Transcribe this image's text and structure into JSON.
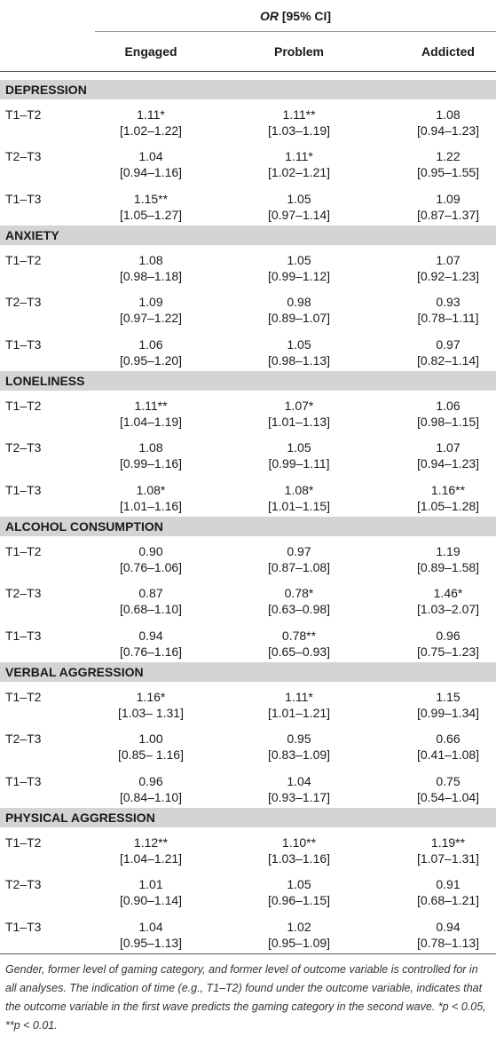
{
  "header": {
    "title_italic": "OR",
    "title_rest": "[95% CI]",
    "columns": [
      "Engaged",
      "Problem",
      "Addicted"
    ]
  },
  "sections": [
    {
      "name": "DEPRESSION",
      "rows": [
        {
          "time": "T1–T2",
          "cells": [
            {
              "value": "1.11*",
              "ci": "[1.02–1.22]"
            },
            {
              "value": "1.11**",
              "ci": "[1.03–1.19]"
            },
            {
              "value": "1.08",
              "ci": "[0.94–1.23]"
            }
          ]
        },
        {
          "time": "T2–T3",
          "cells": [
            {
              "value": "1.04",
              "ci": "[0.94–1.16]"
            },
            {
              "value": "1.11*",
              "ci": "[1.02–1.21]"
            },
            {
              "value": "1.22",
              "ci": "[0.95–1.55]"
            }
          ]
        },
        {
          "time": "T1–T3",
          "cells": [
            {
              "value": "1.15**",
              "ci": "[1.05–1.27]"
            },
            {
              "value": "1.05",
              "ci": "[0.97–1.14]"
            },
            {
              "value": "1.09",
              "ci": "[0.87–1.37]"
            }
          ]
        }
      ]
    },
    {
      "name": "ANXIETY",
      "rows": [
        {
          "time": "T1–T2",
          "cells": [
            {
              "value": "1.08",
              "ci": "[0.98–1.18]"
            },
            {
              "value": "1.05",
              "ci": "[0.99–1.12]"
            },
            {
              "value": "1.07",
              "ci": "[0.92–1.23]"
            }
          ]
        },
        {
          "time": "T2–T3",
          "cells": [
            {
              "value": "1.09",
              "ci": "[0.97–1.22]"
            },
            {
              "value": "0.98",
              "ci": "[0.89–1.07]"
            },
            {
              "value": "0.93",
              "ci": "[0.78–1.11]"
            }
          ]
        },
        {
          "time": "T1–T3",
          "cells": [
            {
              "value": "1.06",
              "ci": "[0.95–1.20]"
            },
            {
              "value": "1.05",
              "ci": "[0.98–1.13]"
            },
            {
              "value": "0.97",
              "ci": "[0.82–1.14]"
            }
          ]
        }
      ]
    },
    {
      "name": "LONELINESS",
      "rows": [
        {
          "time": "T1–T2",
          "cells": [
            {
              "value": "1.11**",
              "ci": "[1.04–1.19]"
            },
            {
              "value": "1.07*",
              "ci": "[1.01–1.13]"
            },
            {
              "value": "1.06",
              "ci": "[0.98–1.15]"
            }
          ]
        },
        {
          "time": "T2–T3",
          "cells": [
            {
              "value": "1.08",
              "ci": "[0.99–1.16]"
            },
            {
              "value": "1.05",
              "ci": "[0.99–1.11]"
            },
            {
              "value": "1.07",
              "ci": "[0.94–1.23]"
            }
          ]
        },
        {
          "time": "T1–T3",
          "cells": [
            {
              "value": "1.08*",
              "ci": "[1.01–1.16]"
            },
            {
              "value": "1.08*",
              "ci": "[1.01–1.15]"
            },
            {
              "value": "1.16**",
              "ci": "[1.05–1.28]"
            }
          ]
        }
      ]
    },
    {
      "name": "ALCOHOL CONSUMPTION",
      "rows": [
        {
          "time": "T1–T2",
          "cells": [
            {
              "value": "0.90",
              "ci": "[0.76–1.06]"
            },
            {
              "value": "0.97",
              "ci": "[0.87–1.08]"
            },
            {
              "value": "1.19",
              "ci": "[0.89–1.58]"
            }
          ]
        },
        {
          "time": "T2–T3",
          "cells": [
            {
              "value": "0.87",
              "ci": "[0.68–1.10]"
            },
            {
              "value": "0.78*",
              "ci": "[0.63–0.98]"
            },
            {
              "value": "1.46*",
              "ci": "[1.03–2.07]"
            }
          ]
        },
        {
          "time": "T1–T3",
          "cells": [
            {
              "value": "0.94",
              "ci": "[0.76–1.16]"
            },
            {
              "value": "0.78**",
              "ci": "[0.65–0.93]"
            },
            {
              "value": "0.96",
              "ci": "[0.75–1.23]"
            }
          ]
        }
      ]
    },
    {
      "name": "VERBAL AGGRESSION",
      "rows": [
        {
          "time": "T1–T2",
          "cells": [
            {
              "value": "1.16*",
              "ci": "[1.03– 1.31]"
            },
            {
              "value": "1.11*",
              "ci": "[1.01–1.21]"
            },
            {
              "value": "1.15",
              "ci": "[0.99–1.34]"
            }
          ]
        },
        {
          "time": "T2–T3",
          "cells": [
            {
              "value": "1.00",
              "ci": "[0.85– 1.16]"
            },
            {
              "value": "0.95",
              "ci": "[0.83–1.09]"
            },
            {
              "value": "0.66",
              "ci": "[0.41–1.08]"
            }
          ]
        },
        {
          "time": "T1–T3",
          "cells": [
            {
              "value": "0.96",
              "ci": "[0.84–1.10]"
            },
            {
              "value": "1.04",
              "ci": "[0.93–1.17]"
            },
            {
              "value": "0.75",
              "ci": "[0.54–1.04]"
            }
          ]
        }
      ]
    },
    {
      "name": "PHYSICAL AGGRESSION",
      "rows": [
        {
          "time": "T1–T2",
          "cells": [
            {
              "value": "1.12**",
              "ci": "[1.04–1.21]"
            },
            {
              "value": "1.10**",
              "ci": "[1.03–1.16]"
            },
            {
              "value": "1.19**",
              "ci": "[1.07–1.31]"
            }
          ]
        },
        {
          "time": "T2–T3",
          "cells": [
            {
              "value": "1.01",
              "ci": "[0.90–1.14]"
            },
            {
              "value": "1.05",
              "ci": "[0.96–1.15]"
            },
            {
              "value": "0.91",
              "ci": "[0.68–1.21]"
            }
          ]
        },
        {
          "time": "T1–T3",
          "cells": [
            {
              "value": "1.04",
              "ci": "[0.95–1.13]"
            },
            {
              "value": "1.02",
              "ci": "[0.95–1.09]"
            },
            {
              "value": "0.94",
              "ci": "[0.78–1.13]"
            }
          ]
        }
      ]
    }
  ],
  "footnote": "Gender, former level of gaming category, and former level of outcome variable is controlled for in all analyses. The indication of time (e.g., T1–T2) found under the outcome variable, indicates that the outcome variable in the first wave predicts the gaming category in the second wave. *p < 0.05, **p < 0.01."
}
